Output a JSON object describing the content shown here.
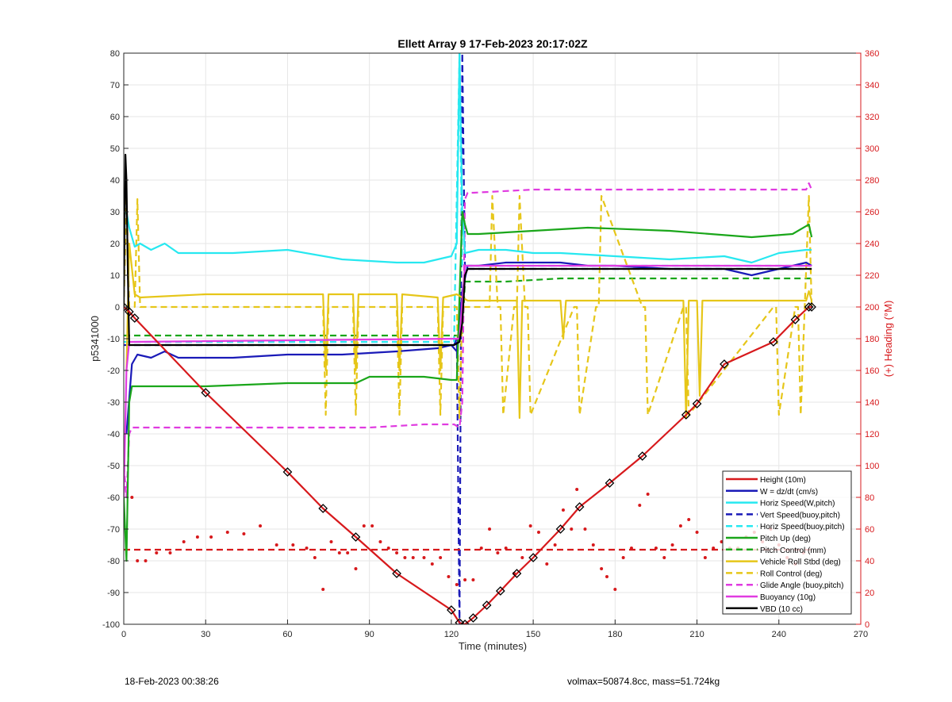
{
  "chart_data": {
    "type": "line",
    "title": "Ellett Array 9 17-Feb-2023 20:17:02Z",
    "xlabel": "Time (minutes)",
    "ylabel": "p5341000",
    "y2label": "(+) Heading (°M)",
    "xlim": [
      0,
      270
    ],
    "ylim": [
      -100,
      80
    ],
    "y2lim": [
      0,
      360
    ],
    "xticks": [
      0,
      30,
      60,
      90,
      120,
      150,
      180,
      210,
      240,
      270
    ],
    "yticks": [
      -100,
      -90,
      -80,
      -70,
      -60,
      -50,
      -40,
      -30,
      -20,
      -10,
      0,
      10,
      20,
      30,
      40,
      50,
      60,
      70,
      80
    ],
    "y2ticks": [
      0,
      20,
      40,
      60,
      80,
      100,
      120,
      140,
      160,
      180,
      200,
      220,
      240,
      260,
      280,
      300,
      320,
      340,
      360
    ],
    "grid": true,
    "legend_position": "bottom-right",
    "colors": {
      "red": "#d7191c",
      "blue": "#1a1ab8",
      "cyan": "#27e8f0",
      "green": "#1aa61a",
      "yellow": "#e6c619",
      "magenta": "#e03be0",
      "black": "#000000",
      "axis2": "#d7191c"
    },
    "series": [
      {
        "name": "Height (10m)",
        "color": "red",
        "style": "solid-marker",
        "x": [
          0,
          2,
          4,
          30,
          60,
          73,
          85,
          100,
          120,
          123,
          125,
          128,
          133,
          138,
          144,
          150,
          160,
          167,
          178,
          190,
          206,
          210,
          220,
          238,
          246,
          251,
          252
        ],
        "y": [
          0,
          -1.5,
          -3.5,
          -27,
          -52,
          -63.5,
          -72.5,
          -84,
          -95.5,
          -99.5,
          -100,
          -98,
          -94,
          -89.5,
          -84,
          -79,
          -70,
          -63,
          -55.5,
          -47,
          -34,
          -30.5,
          -18,
          -11,
          -4,
          0,
          0
        ]
      },
      {
        "name": "W = dz/dt (cm/s)",
        "color": "blue",
        "style": "solid",
        "x": [
          1,
          3,
          5,
          10,
          15,
          20,
          40,
          60,
          80,
          100,
          115,
          120,
          122,
          124,
          126,
          130,
          140,
          150,
          160,
          170,
          180,
          200,
          220,
          230,
          240,
          250,
          252
        ],
        "y": [
          -40,
          -18,
          -15,
          -16,
          -14,
          -16,
          -16,
          -15,
          -15,
          -14,
          -13,
          -12,
          -14,
          5,
          13,
          13,
          14,
          14,
          14,
          13,
          13,
          12,
          12,
          10,
          12,
          14,
          13
        ]
      },
      {
        "name": "Horiz Speed(W,pitch)",
        "color": "cyan",
        "style": "solid",
        "x": [
          1,
          2,
          4,
          6,
          10,
          15,
          20,
          40,
          60,
          80,
          100,
          110,
          120,
          122,
          123,
          124,
          125,
          130,
          140,
          150,
          160,
          180,
          200,
          220,
          230,
          240,
          250,
          252
        ],
        "y": [
          30,
          25,
          19,
          20,
          18,
          20,
          17,
          17,
          18,
          15,
          14,
          14,
          16,
          20,
          80,
          30,
          17,
          18,
          18,
          17,
          17,
          16,
          15,
          16,
          14,
          17,
          18,
          18
        ]
      },
      {
        "name": "Vert Speed(buoy,pitch)",
        "color": "blue",
        "style": "dashed",
        "x": [
          0,
          121,
          122,
          123,
          124,
          125,
          126,
          252
        ],
        "y": [
          -12,
          -12,
          -10,
          -100,
          80,
          12,
          12,
          12
        ]
      },
      {
        "name": "Horiz Speed(buoy,pitch)",
        "color": "cyan",
        "style": "dashed",
        "x": [
          0,
          120,
          121,
          123,
          124,
          126,
          252
        ],
        "y": [
          -11,
          -11,
          -11,
          80,
          13,
          13,
          13
        ]
      },
      {
        "name": "Pitch Up (deg)",
        "color": "green",
        "style": "solid",
        "x": [
          0,
          1,
          2,
          3,
          5,
          30,
          60,
          85,
          90,
          110,
          120,
          122,
          124,
          125,
          126,
          130,
          150,
          170,
          200,
          230,
          245,
          251,
          252
        ],
        "y": [
          -60,
          -80,
          -30,
          -25,
          -25,
          -25,
          -24,
          -24,
          -22,
          -22,
          -23,
          -23,
          30,
          26,
          23,
          23,
          24,
          25,
          24,
          22,
          23,
          26,
          22
        ]
      },
      {
        "name": "Pitch Control (mm)",
        "color": "green",
        "style": "dashed",
        "x": [
          0,
          121,
          124,
          125,
          140,
          160,
          200,
          252
        ],
        "y": [
          -9,
          -9,
          -9,
          8,
          8,
          9,
          9,
          9
        ]
      },
      {
        "name": "Vehicle Roll Stbd (deg)",
        "color": "yellow",
        "style": "solid",
        "x": [
          1,
          2,
          4,
          6,
          30,
          60,
          73,
          74,
          75,
          84,
          85,
          86,
          100,
          101,
          102,
          115,
          116,
          117,
          122,
          124,
          126,
          140,
          144,
          145,
          146,
          160,
          161,
          162,
          177,
          180,
          200,
          205,
          206,
          207,
          210,
          211,
          212,
          250,
          251,
          252
        ],
        "y": [
          -20,
          20,
          4,
          3,
          4,
          4,
          4,
          -20,
          4,
          4,
          -20,
          4,
          4,
          -20,
          4,
          3,
          -20,
          3,
          4,
          3,
          2,
          2,
          2,
          -35,
          2,
          2,
          -10,
          2,
          2,
          2,
          2,
          2,
          -35,
          2,
          2,
          -28,
          2,
          2,
          5,
          2
        ]
      },
      {
        "name": "Roll Control (deg)",
        "color": "yellow",
        "style": "dashed",
        "x": [
          0,
          1,
          2,
          4,
          5,
          6,
          73,
          74,
          75,
          84,
          85,
          86,
          100,
          101,
          102,
          115,
          116,
          117,
          122,
          123,
          124,
          134,
          135,
          137,
          138,
          139,
          143,
          144,
          145,
          147,
          148,
          149,
          165,
          166,
          167,
          173,
          174,
          175,
          190,
          191,
          192,
          205,
          206,
          207,
          238,
          239,
          240,
          246,
          247,
          248,
          251,
          252
        ],
        "y": [
          0,
          35,
          0,
          0,
          34,
          0,
          0,
          -34,
          0,
          0,
          -34,
          0,
          0,
          -34,
          0,
          0,
          -34,
          0,
          0,
          -35,
          0,
          0,
          35,
          0,
          0,
          -34,
          0,
          0,
          35,
          0,
          0,
          -34,
          0,
          0,
          -34,
          0,
          0,
          35,
          0,
          0,
          -34,
          0,
          0,
          -34,
          0,
          0,
          -34,
          0,
          0,
          -34,
          35,
          0
        ]
      },
      {
        "name": "Glide Angle (buoy,pitch)",
        "color": "magenta",
        "style": "dashed",
        "x": [
          0,
          1,
          2,
          3,
          5,
          30,
          60,
          90,
          110,
          121,
          123,
          124,
          125,
          126,
          128,
          150,
          180,
          210,
          240,
          250,
          251,
          252
        ],
        "y": [
          -50,
          -60,
          -40,
          -38,
          -38,
          -38,
          -38,
          -38,
          -37,
          -37,
          -38,
          -30,
          34,
          36,
          36,
          37,
          37,
          37,
          37,
          37,
          39,
          37
        ]
      },
      {
        "name": "Buoyancy (10g)",
        "color": "magenta",
        "style": "solid",
        "x": [
          0,
          1,
          2,
          3,
          122,
          123,
          125,
          126,
          150,
          200,
          252
        ],
        "y": [
          -60,
          -20,
          -11,
          -11,
          -10,
          -10,
          13,
          13,
          13,
          13,
          13
        ]
      },
      {
        "name": "VBD (10 cc)",
        "color": "black",
        "style": "solid",
        "x": [
          0,
          0.6,
          1,
          1.5,
          2,
          121,
          123,
          124,
          125,
          126,
          150,
          200,
          252
        ],
        "y": [
          0,
          48,
          40,
          10,
          -12,
          -12,
          -11,
          -5,
          10,
          12,
          12,
          12,
          12
        ]
      },
      {
        "name": "Heading",
        "axis": "right",
        "color": "red",
        "style": "dots",
        "x": [
          3,
          5,
          8,
          12,
          17,
          22,
          27,
          32,
          38,
          44,
          50,
          56,
          62,
          67,
          70,
          73,
          76,
          79,
          82,
          85,
          88,
          91,
          94,
          97,
          100,
          103,
          106,
          110,
          113,
          116,
          119,
          122,
          125,
          128,
          131,
          134,
          137,
          140,
          143,
          146,
          149,
          152,
          155,
          158,
          161,
          164,
          166,
          169,
          172,
          175,
          177,
          180,
          183,
          186,
          189,
          192,
          195,
          198,
          201,
          204,
          207,
          210,
          213,
          216,
          219,
          222,
          225,
          228,
          231,
          234,
          237,
          240,
          243,
          246,
          249
        ],
        "y": [
          80,
          40,
          40,
          45,
          45,
          52,
          55,
          55,
          58,
          57,
          62,
          50,
          50,
          48,
          42,
          22,
          52,
          45,
          45,
          35,
          62,
          62,
          52,
          48,
          45,
          42,
          42,
          42,
          38,
          42,
          30,
          25,
          28,
          28,
          48,
          60,
          45,
          48,
          32,
          42,
          62,
          58,
          38,
          50,
          72,
          60,
          85,
          60,
          50,
          35,
          30,
          22,
          42,
          48,
          75,
          82,
          48,
          42,
          50,
          62,
          66,
          58,
          42,
          48,
          52,
          48,
          48,
          55,
          58,
          52,
          60,
          50,
          42,
          38,
          45
        ]
      },
      {
        "name": "Heading reference",
        "axis": "right",
        "color": "red",
        "style": "dashed",
        "x": [
          0,
          252
        ],
        "y": [
          47,
          47
        ]
      }
    ],
    "legend": [
      {
        "label": "Height (10m)",
        "color": "red",
        "style": "solid"
      },
      {
        "label": "W = dz/dt (cm/s)",
        "color": "blue",
        "style": "solid"
      },
      {
        "label": "Horiz Speed(W,pitch)",
        "color": "cyan",
        "style": "solid"
      },
      {
        "label": "Vert Speed(buoy,pitch)",
        "color": "blue",
        "style": "dashed"
      },
      {
        "label": "Horiz Speed(buoy,pitch)",
        "color": "cyan",
        "style": "dashed"
      },
      {
        "label": "Pitch Up (deg)",
        "color": "green",
        "style": "solid"
      },
      {
        "label": "Pitch Control (mm)",
        "color": "green",
        "style": "dashed"
      },
      {
        "label": "Vehicle Roll Stbd (deg)",
        "color": "yellow",
        "style": "solid"
      },
      {
        "label": "Roll Control (deg)",
        "color": "yellow",
        "style": "dashed"
      },
      {
        "label": "Glide Angle (buoy,pitch)",
        "color": "magenta",
        "style": "dashed"
      },
      {
        "label": "Buoyancy (10g)",
        "color": "magenta",
        "style": "solid"
      },
      {
        "label": "VBD (10 cc)",
        "color": "black",
        "style": "solid"
      }
    ]
  },
  "footer": {
    "left": "18-Feb-2023 00:38:26",
    "right": "volmax=50874.8cc, mass=51.724kg"
  }
}
